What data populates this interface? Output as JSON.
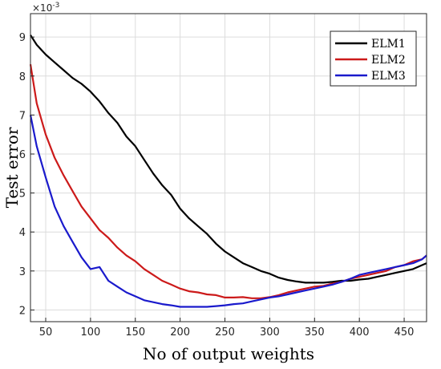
{
  "chart_data": {
    "type": "line",
    "xlabel": "No of output weights",
    "ylabel": "Test error",
    "exponent_label": "×10",
    "exponent_power": "-3",
    "xlim": [
      33,
      475
    ],
    "ylim": [
      1.7,
      9.6
    ],
    "xticks": [
      50,
      100,
      150,
      200,
      250,
      300,
      350,
      400,
      450
    ],
    "yticks": [
      2,
      3,
      4,
      5,
      6,
      7,
      8,
      9
    ],
    "grid": true,
    "legend_position": "top-right",
    "series": [
      {
        "name": "ELM1",
        "color": "#000000",
        "x": [
          33,
          40,
          50,
          60,
          70,
          80,
          90,
          100,
          110,
          120,
          130,
          140,
          150,
          160,
          170,
          180,
          190,
          200,
          210,
          220,
          230,
          240,
          250,
          260,
          270,
          280,
          290,
          300,
          310,
          320,
          330,
          340,
          350,
          360,
          370,
          380,
          390,
          400,
          410,
          420,
          430,
          440,
          450,
          460,
          470,
          475
        ],
        "y": [
          9.05,
          8.8,
          8.55,
          8.35,
          8.15,
          7.95,
          7.8,
          7.6,
          7.35,
          7.05,
          6.8,
          6.45,
          6.2,
          5.85,
          5.5,
          5.2,
          4.95,
          4.6,
          4.35,
          4.15,
          3.95,
          3.7,
          3.5,
          3.35,
          3.2,
          3.1,
          3.0,
          2.93,
          2.83,
          2.77,
          2.73,
          2.7,
          2.7,
          2.7,
          2.72,
          2.75,
          2.75,
          2.78,
          2.8,
          2.85,
          2.9,
          2.95,
          3.0,
          3.05,
          3.15,
          3.2
        ]
      },
      {
        "name": "ELM2",
        "color": "#cc1a1a",
        "x": [
          33,
          40,
          50,
          60,
          70,
          80,
          90,
          100,
          110,
          120,
          130,
          140,
          150,
          160,
          170,
          180,
          190,
          200,
          210,
          220,
          230,
          240,
          250,
          260,
          270,
          280,
          290,
          300,
          310,
          320,
          330,
          340,
          350,
          360,
          370,
          380,
          390,
          400,
          410,
          420,
          430,
          440,
          450,
          460,
          470,
          475
        ],
        "y": [
          8.3,
          7.3,
          6.5,
          5.9,
          5.45,
          5.05,
          4.65,
          4.35,
          4.05,
          3.85,
          3.6,
          3.4,
          3.25,
          3.05,
          2.9,
          2.75,
          2.65,
          2.55,
          2.48,
          2.45,
          2.4,
          2.38,
          2.32,
          2.32,
          2.33,
          2.3,
          2.3,
          2.33,
          2.38,
          2.45,
          2.5,
          2.55,
          2.6,
          2.62,
          2.68,
          2.72,
          2.8,
          2.85,
          2.9,
          2.95,
          3.0,
          3.1,
          3.15,
          3.25,
          3.3,
          3.4
        ]
      },
      {
        "name": "ELM3",
        "color": "#1a1acc",
        "x": [
          33,
          40,
          50,
          60,
          70,
          80,
          90,
          100,
          110,
          120,
          130,
          140,
          150,
          160,
          170,
          180,
          190,
          200,
          210,
          220,
          230,
          240,
          250,
          260,
          270,
          280,
          290,
          300,
          310,
          320,
          330,
          340,
          350,
          360,
          370,
          380,
          390,
          400,
          410,
          420,
          430,
          440,
          450,
          460,
          470,
          475
        ],
        "y": [
          7.0,
          6.2,
          5.4,
          4.65,
          4.15,
          3.75,
          3.35,
          3.05,
          3.1,
          2.75,
          2.6,
          2.45,
          2.35,
          2.25,
          2.2,
          2.15,
          2.12,
          2.08,
          2.08,
          2.08,
          2.08,
          2.1,
          2.12,
          2.15,
          2.17,
          2.22,
          2.27,
          2.32,
          2.35,
          2.4,
          2.45,
          2.5,
          2.55,
          2.6,
          2.65,
          2.72,
          2.8,
          2.9,
          2.95,
          3.0,
          3.05,
          3.1,
          3.15,
          3.2,
          3.3,
          3.4
        ]
      }
    ]
  }
}
